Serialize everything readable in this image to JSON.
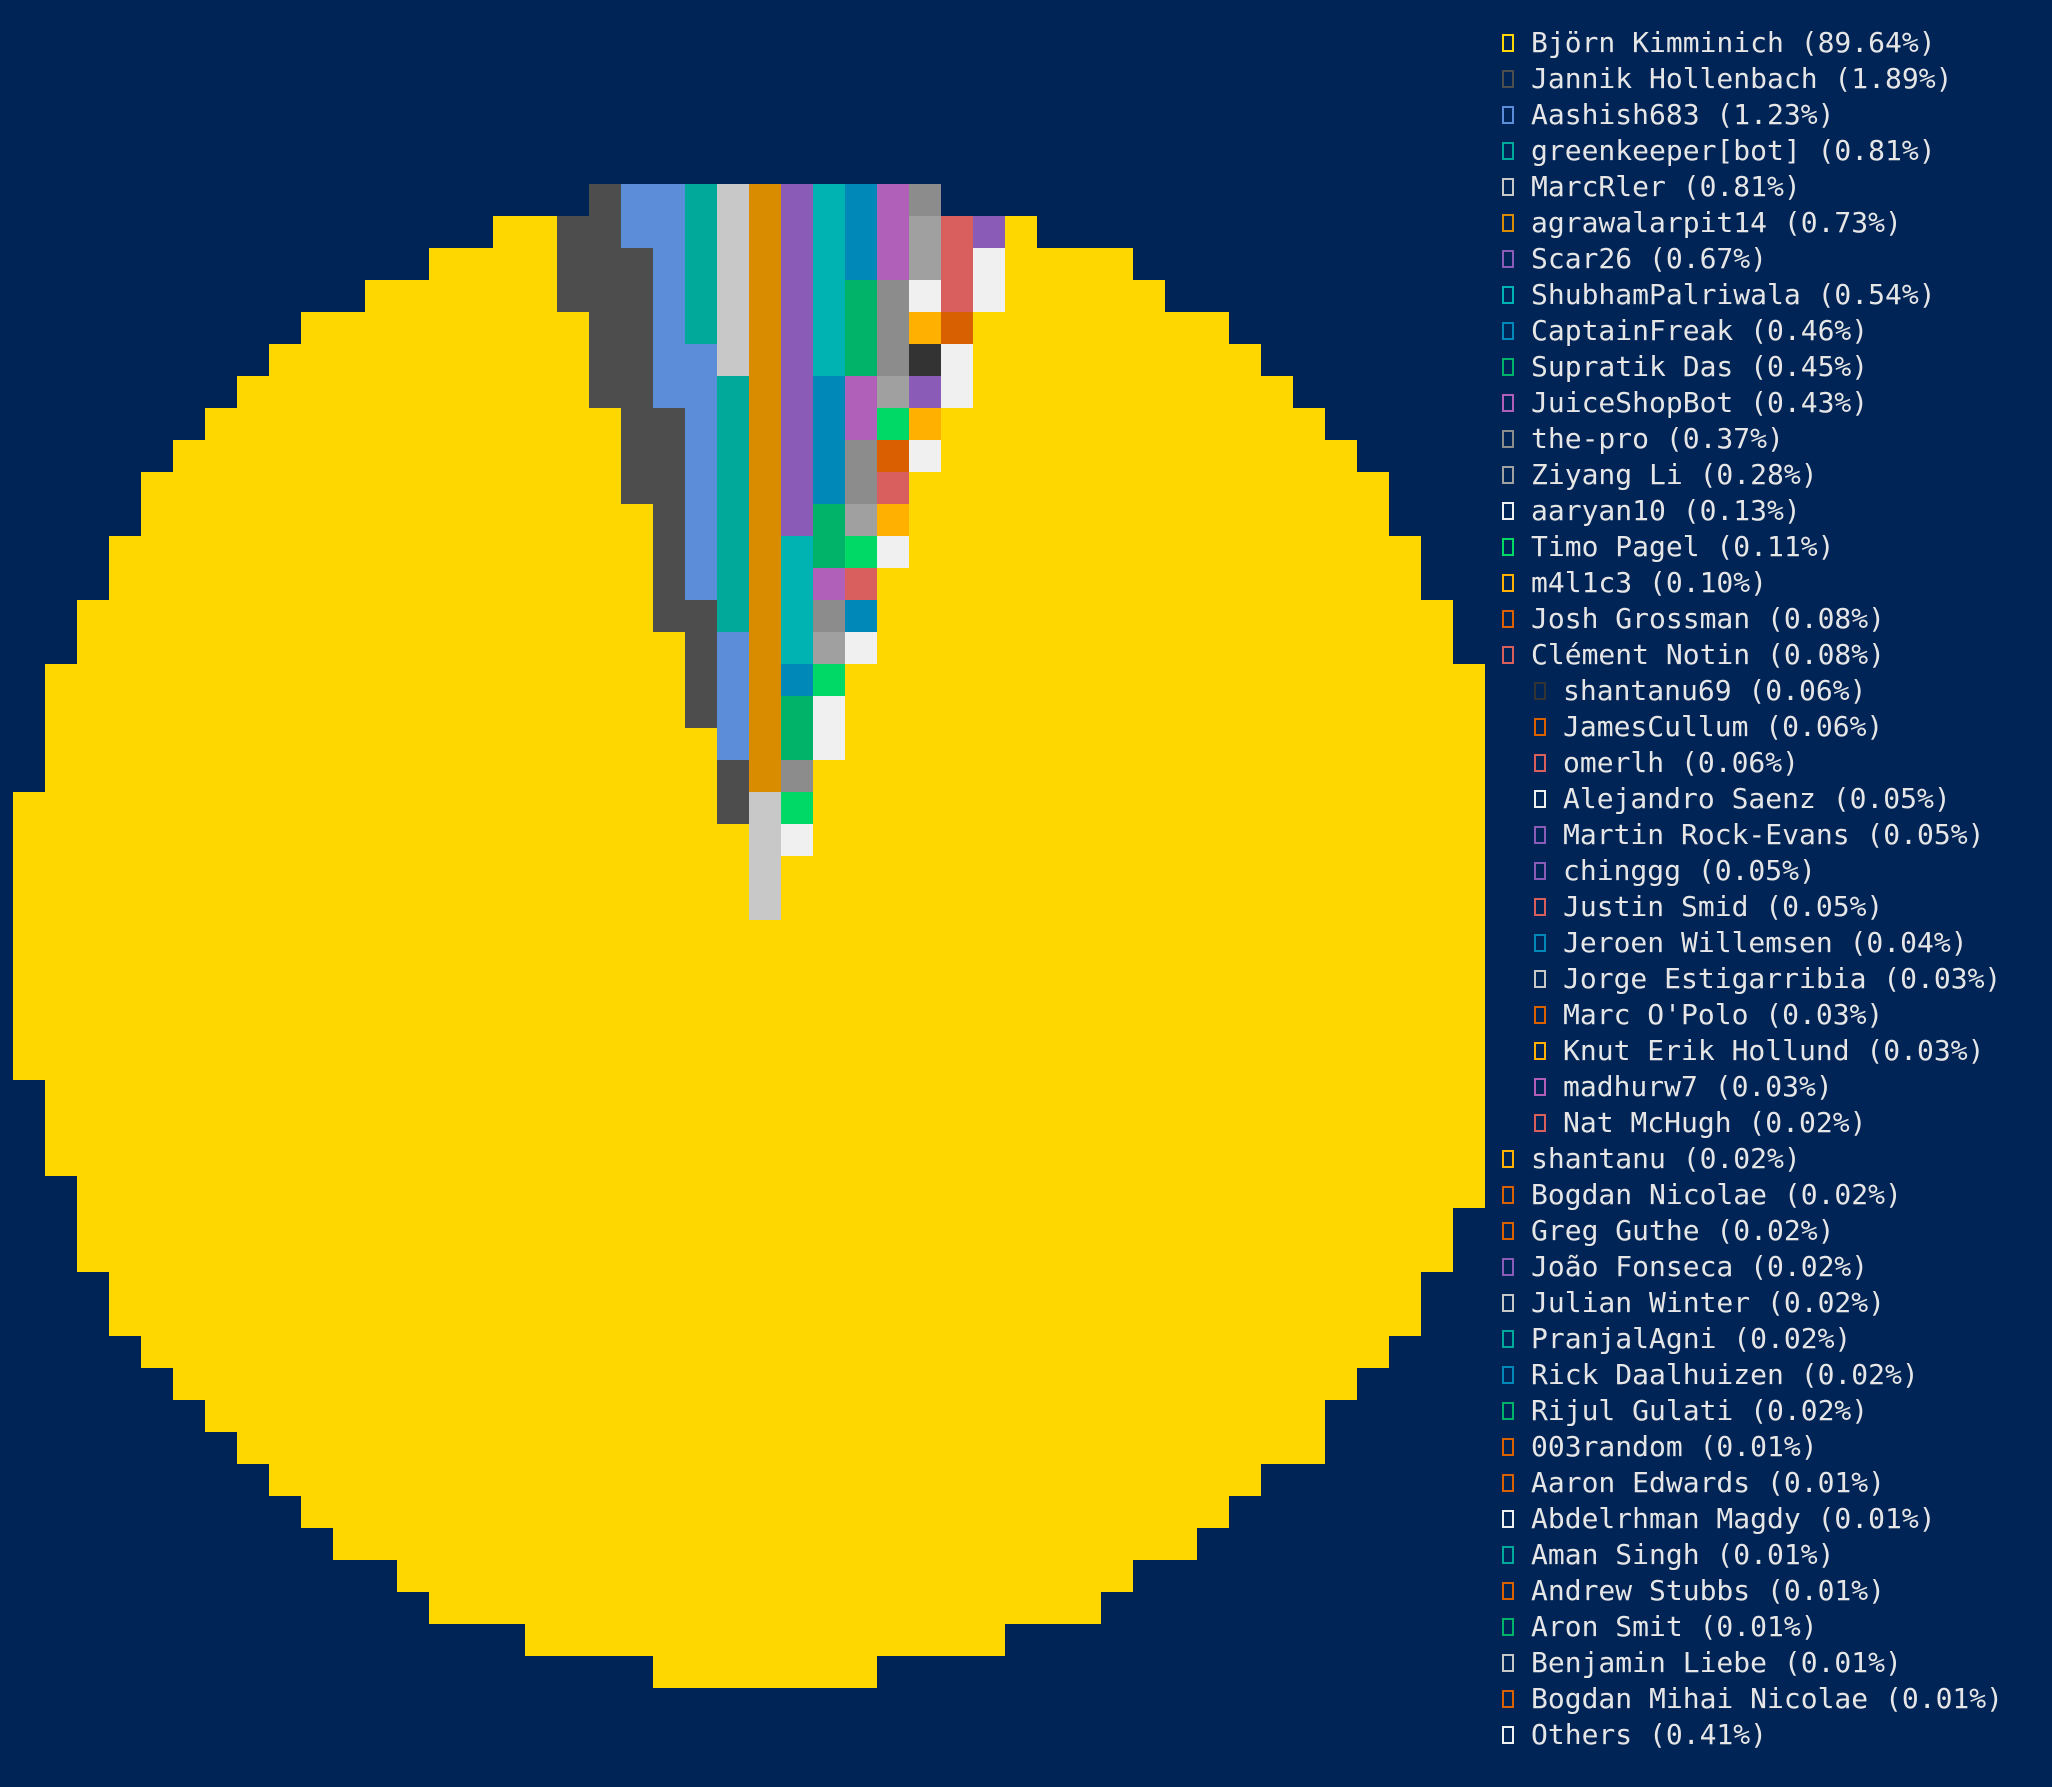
{
  "chart_data": {
    "type": "pie",
    "title": "",
    "legend_position": "right",
    "background": "#012456",
    "slices": [
      {
        "label": "Björn Kimminich (89.64%)",
        "value": 89.64,
        "color": "#ffd700"
      },
      {
        "label": "Jannik Hollenbach (1.89%)",
        "value": 1.89,
        "color": "#4d4d4d"
      },
      {
        "label": "Aashish683 (1.23%)",
        "value": 1.23,
        "color": "#5b8dd9"
      },
      {
        "label": "greenkeeper[bot] (0.81%)",
        "value": 0.81,
        "color": "#00a99a"
      },
      {
        "label": "MarcRler (0.81%)",
        "value": 0.81,
        "color": "#c8c8c8"
      },
      {
        "label": "agrawalarpit14 (0.73%)",
        "value": 0.73,
        "color": "#d98c00"
      },
      {
        "label": "Scar26 (0.67%)",
        "value": 0.67,
        "color": "#8a5cb8"
      },
      {
        "label": "ShubhamPalriwala (0.54%)",
        "value": 0.54,
        "color": "#00b3b3"
      },
      {
        "label": "CaptainFreak (0.46%)",
        "value": 0.46,
        "color": "#0088b8"
      },
      {
        "label": "Supratik Das (0.45%)",
        "value": 0.45,
        "color": "#00b368"
      },
      {
        "label": "JuiceShopBot (0.43%)",
        "value": 0.43,
        "color": "#b060b8"
      },
      {
        "label": "the-pro (0.37%)",
        "value": 0.37,
        "color": "#8c8c8c"
      },
      {
        "label": "Ziyang Li (0.28%)",
        "value": 0.28,
        "color": "#a0a0a0"
      },
      {
        "label": "aaryan10 (0.13%)",
        "value": 0.13,
        "color": "#f0f0f0"
      },
      {
        "label": "Timo Pagel (0.11%)",
        "value": 0.11,
        "color": "#00d966"
      },
      {
        "label": "m4l1c3 (0.10%)",
        "value": 0.1,
        "color": "#ffb000"
      },
      {
        "label": "Josh Grossman (0.08%)",
        "value": 0.08,
        "color": "#d95f00"
      },
      {
        "label": "Clément Notin (0.08%)",
        "value": 0.08,
        "color": "#d95f5f"
      },
      {
        "label": "shantanu69 (0.06%)",
        "value": 0.06,
        "color": "#333333"
      },
      {
        "label": "JamesCullum (0.06%)",
        "value": 0.06,
        "color": "#d96000"
      },
      {
        "label": "omerlh (0.06%)",
        "value": 0.06,
        "color": "#d95f5f"
      },
      {
        "label": "Alejandro Saenz (0.05%)",
        "value": 0.05,
        "color": "#f0f0f0"
      },
      {
        "label": "Martin Rock-Evans (0.05%)",
        "value": 0.05,
        "color": "#8a5cb8"
      },
      {
        "label": "chinggg (0.05%)",
        "value": 0.05,
        "color": "#8a5cb8"
      },
      {
        "label": "Justin Smid (0.05%)",
        "value": 0.05,
        "color": "#d95f5f"
      },
      {
        "label": "Jeroen Willemsen (0.04%)",
        "value": 0.04,
        "color": "#0088b8"
      },
      {
        "label": "Jorge Estigarribia (0.03%)",
        "value": 0.03,
        "color": "#c8c8c8"
      },
      {
        "label": "Marc O'Polo (0.03%)",
        "value": 0.03,
        "color": "#d96000"
      },
      {
        "label": "Knut Erik Hollund (0.03%)",
        "value": 0.03,
        "color": "#ffb000"
      },
      {
        "label": "madhurw7 (0.03%)",
        "value": 0.03,
        "color": "#b060b8"
      },
      {
        "label": "Nat McHugh (0.02%)",
        "value": 0.02,
        "color": "#d95f5f"
      },
      {
        "label": "shantanu (0.02%)",
        "value": 0.02,
        "color": "#ffb000"
      },
      {
        "label": "Bogdan Nicolae (0.02%)",
        "value": 0.02,
        "color": "#d96000"
      },
      {
        "label": "Greg Guthe (0.02%)",
        "value": 0.02,
        "color": "#d96000"
      },
      {
        "label": "João Fonseca (0.02%)",
        "value": 0.02,
        "color": "#8a5cb8"
      },
      {
        "label": "Julian Winter (0.02%)",
        "value": 0.02,
        "color": "#c8c8c8"
      },
      {
        "label": "PranjalAgni (0.02%)",
        "value": 0.02,
        "color": "#00a99a"
      },
      {
        "label": "Rick Daalhuizen (0.02%)",
        "value": 0.02,
        "color": "#0088b8"
      },
      {
        "label": "Rijul Gulati (0.02%)",
        "value": 0.02,
        "color": "#00b368"
      },
      {
        "label": "003random (0.01%)",
        "value": 0.01,
        "color": "#d96000"
      },
      {
        "label": "Aaron Edwards (0.01%)",
        "value": 0.01,
        "color": "#d96000"
      },
      {
        "label": "Abdelrhman Magdy (0.01%)",
        "value": 0.01,
        "color": "#f0f0f0"
      },
      {
        "label": "Aman Singh (0.01%)",
        "value": 0.01,
        "color": "#00a99a"
      },
      {
        "label": "Andrew Stubbs (0.01%)",
        "value": 0.01,
        "color": "#d96000"
      },
      {
        "label": "Aron Smit (0.01%)",
        "value": 0.01,
        "color": "#00b368"
      },
      {
        "label": "Benjamin Liebe (0.01%)",
        "value": 0.01,
        "color": "#c8c8c8"
      },
      {
        "label": "Bogdan Mihai Nicolae (0.01%)",
        "value": 0.01,
        "color": "#d96000"
      },
      {
        "label": "Others (0.41%)",
        "value": 0.41,
        "color": "#f0f0f0"
      }
    ]
  },
  "legend": {
    "indented_labels": [
      "shantanu69 (0.06%)",
      "JamesCullum (0.06%)",
      "omerlh (0.06%)",
      "Alejandro Saenz (0.05%)",
      "Martin Rock-Evans (0.05%)",
      "chinggg (0.05%)",
      "Justin Smid (0.05%)",
      "Jeroen Willemsen (0.04%)",
      "Jorge Estigarribia (0.03%)",
      "Marc O'Polo (0.03%)",
      "Knut Erik Hollund (0.03%)",
      "madhurw7 (0.03%)",
      "Nat McHugh (0.02%)"
    ]
  }
}
